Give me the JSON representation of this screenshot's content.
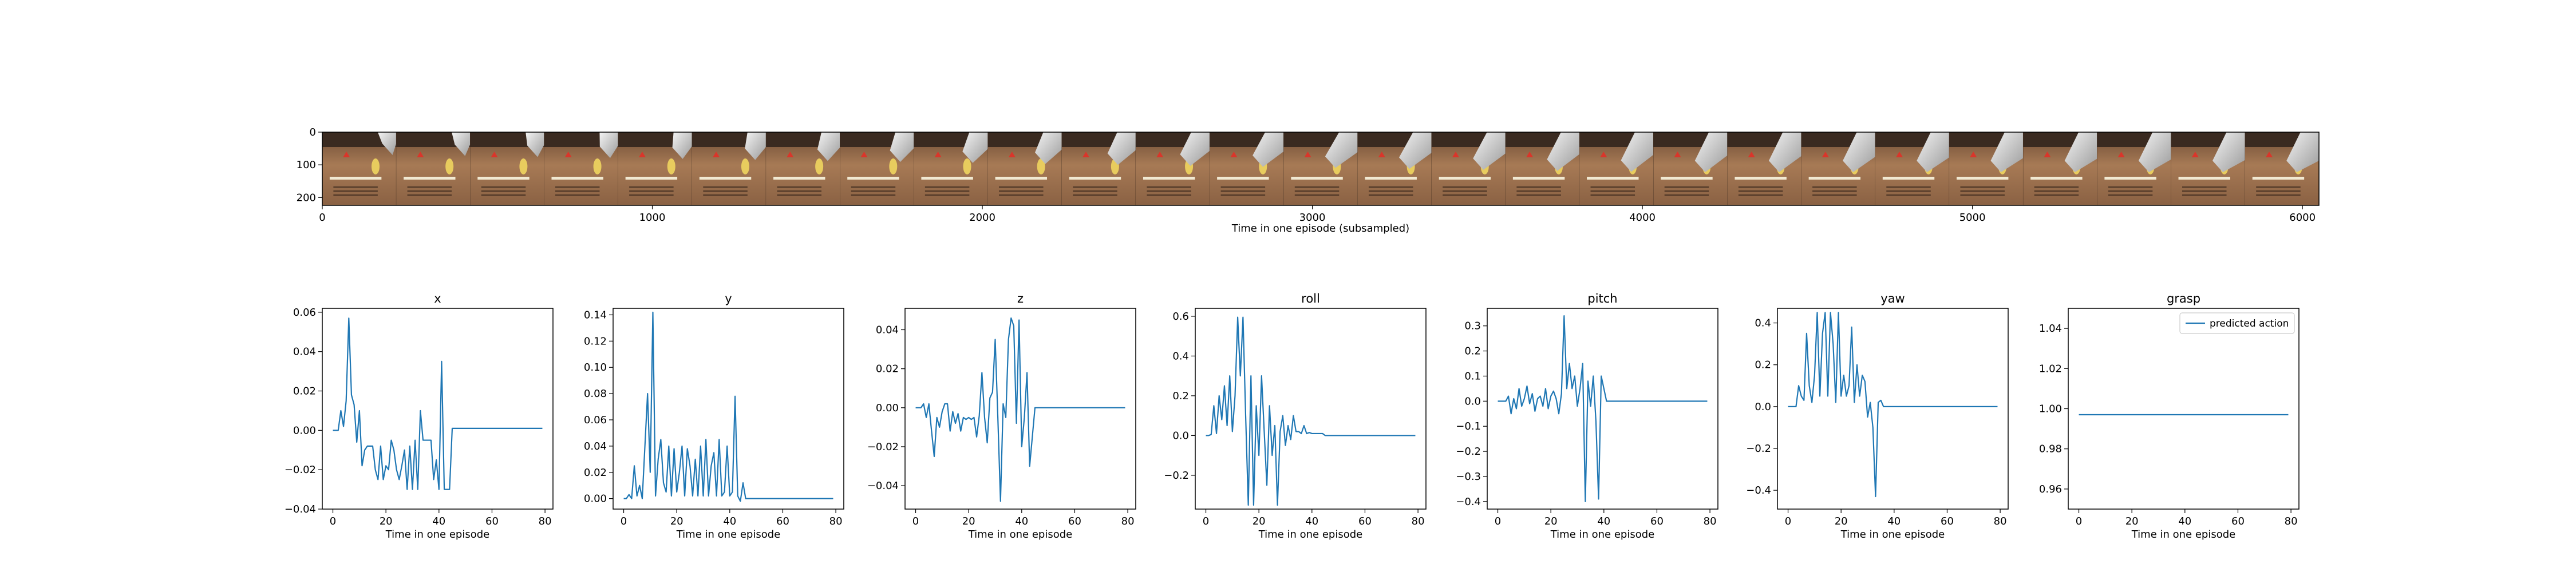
{
  "colors": {
    "line": "#1f77b4",
    "axis": "#000000",
    "background": "#ffffff"
  },
  "filmstrip": {
    "xlabel": "Time in one episode (subsampled)",
    "x_ticks": [
      "0",
      "1000",
      "2000",
      "3000",
      "4000",
      "5000",
      "6000"
    ],
    "y_ticks": [
      "0",
      "100",
      "200"
    ],
    "frame_count": 27,
    "frame_description": "robot gripper above a tan box with a red marker and yellow object"
  },
  "chart_data": [
    {
      "type": "line",
      "title": "x",
      "xlabel": "Time in one episode",
      "x_ticks": [
        "0",
        "20",
        "40",
        "60",
        "80"
      ],
      "y_ticks": [
        "−0.04",
        "−0.02",
        "0.00",
        "0.02",
        "0.04",
        "0.06"
      ],
      "y_tick_values": [
        -0.04,
        -0.02,
        0.0,
        0.02,
        0.04,
        0.06
      ],
      "xlim": [
        -4,
        83
      ],
      "ylim": [
        -0.04,
        0.062
      ],
      "values": [
        0,
        0,
        0,
        0.01,
        0.002,
        0.015,
        0.057,
        0.018,
        0.013,
        -0.006,
        0.01,
        -0.018,
        -0.01,
        -0.008,
        -0.008,
        -0.008,
        -0.02,
        -0.025,
        -0.008,
        -0.025,
        -0.018,
        -0.02,
        -0.005,
        -0.01,
        -0.02,
        -0.025,
        -0.018,
        -0.01,
        -0.03,
        -0.008,
        -0.03,
        -0.005,
        -0.03,
        0.01,
        -0.005,
        -0.005,
        -0.005,
        -0.005,
        -0.025,
        -0.015,
        -0.03,
        0.035,
        -0.03,
        -0.03,
        -0.03,
        0.001,
        0.001,
        0.001,
        0.001,
        0.001,
        0.001,
        0.001,
        0.001,
        0.001,
        0.001,
        0.001,
        0.001,
        0.001,
        0.001,
        0.001,
        0.001,
        0.001,
        0.001,
        0.001,
        0.001,
        0.001,
        0.001,
        0.001,
        0.001,
        0.001,
        0.001,
        0.001,
        0.001,
        0.001,
        0.001,
        0.001,
        0.001,
        0.001,
        0.001,
        0.001
      ]
    },
    {
      "type": "line",
      "title": "y",
      "xlabel": "Time in one episode",
      "x_ticks": [
        "0",
        "20",
        "40",
        "60",
        "80"
      ],
      "y_ticks": [
        "0.00",
        "0.02",
        "0.04",
        "0.06",
        "0.08",
        "0.10",
        "0.12",
        "0.14"
      ],
      "y_tick_values": [
        0,
        0.02,
        0.04,
        0.06,
        0.08,
        0.1,
        0.12,
        0.14
      ],
      "xlim": [
        -4,
        83
      ],
      "ylim": [
        -0.008,
        0.145
      ],
      "values": [
        0,
        0,
        0.003,
        0,
        0.025,
        0.002,
        0.01,
        0,
        0.04,
        0.08,
        0.02,
        0.142,
        0.002,
        0.03,
        0.045,
        0.012,
        0.005,
        0.04,
        0.002,
        0.038,
        0.005,
        0.02,
        0.04,
        0.002,
        0.038,
        0.025,
        0.002,
        0.03,
        0.002,
        0.04,
        0.002,
        0.045,
        0.002,
        0.025,
        0.035,
        0.002,
        0.045,
        0.002,
        0.005,
        0.04,
        0.002,
        0.005,
        0.078,
        0.002,
        -0.002,
        0.012,
        0,
        0,
        0,
        0,
        0,
        0,
        0,
        0,
        0,
        0,
        0,
        0,
        0,
        0,
        0,
        0,
        0,
        0,
        0,
        0,
        0,
        0,
        0,
        0,
        0,
        0,
        0,
        0,
        0,
        0,
        0,
        0,
        0,
        0
      ]
    },
    {
      "type": "line",
      "title": "z",
      "xlabel": "Time in one episode",
      "x_ticks": [
        "0",
        "20",
        "40",
        "60",
        "80"
      ],
      "y_ticks": [
        "−0.04",
        "−0.02",
        "0.00",
        "0.02",
        "0.04"
      ],
      "y_tick_values": [
        -0.04,
        -0.02,
        0.0,
        0.02,
        0.04
      ],
      "xlim": [
        -4,
        83
      ],
      "ylim": [
        -0.052,
        0.051
      ],
      "values": [
        0,
        0,
        0,
        0.002,
        -0.005,
        0.002,
        -0.012,
        -0.025,
        -0.005,
        -0.01,
        -0.002,
        0.002,
        0.002,
        -0.012,
        -0.002,
        -0.008,
        -0.003,
        -0.012,
        -0.005,
        -0.006,
        -0.005,
        -0.006,
        -0.005,
        -0.015,
        -0.004,
        0.018,
        -0.005,
        -0.018,
        0.005,
        0.008,
        0.035,
        -0.005,
        -0.048,
        0.002,
        -0.005,
        0.035,
        0.046,
        0.042,
        -0.008,
        0.045,
        -0.02,
        -0.005,
        0.018,
        -0.03,
        -0.015,
        0,
        0,
        0,
        0,
        0,
        0,
        0,
        0,
        0,
        0,
        0,
        0,
        0,
        0,
        0,
        0,
        0,
        0,
        0,
        0,
        0,
        0,
        0,
        0,
        0,
        0,
        0,
        0,
        0,
        0,
        0,
        0,
        0,
        0,
        0
      ]
    },
    {
      "type": "line",
      "title": "roll",
      "xlabel": "Time in one episode",
      "x_ticks": [
        "0",
        "20",
        "40",
        "60",
        "80"
      ],
      "y_ticks": [
        "−0.2",
        "0.0",
        "0.2",
        "0.4",
        "0.6"
      ],
      "y_tick_values": [
        -0.2,
        0.0,
        0.2,
        0.4,
        0.6
      ],
      "xlim": [
        -4,
        83
      ],
      "ylim": [
        -0.37,
        0.64
      ],
      "values": [
        0,
        0,
        0.005,
        0.15,
        0.01,
        0.2,
        0.08,
        0.25,
        0.05,
        0.3,
        0.02,
        0.2,
        0.595,
        0.3,
        0.595,
        0.1,
        -0.35,
        0.3,
        -0.35,
        0.15,
        -0.1,
        0.3,
        0.02,
        -0.25,
        0.15,
        -0.1,
        0.05,
        -0.35,
        0.02,
        0.1,
        -0.05,
        0.05,
        -0.02,
        0.1,
        0.02,
        0.02,
        0.01,
        0.05,
        0.01,
        0.015,
        0.01,
        0.01,
        0.01,
        0.01,
        0.01,
        0,
        0,
        0,
        0,
        0,
        0,
        0,
        0,
        0,
        0,
        0,
        0,
        0,
        0,
        0,
        0,
        0,
        0,
        0,
        0,
        0,
        0,
        0,
        0,
        0,
        0,
        0,
        0,
        0,
        0,
        0,
        0,
        0,
        0,
        0
      ]
    },
    {
      "type": "line",
      "title": "pitch",
      "xlabel": "Time in one episode",
      "x_ticks": [
        "0",
        "20",
        "40",
        "60",
        "80"
      ],
      "y_ticks": [
        "−0.4",
        "−0.3",
        "−0.2",
        "−0.1",
        "0.0",
        "0.1",
        "0.2",
        "0.3"
      ],
      "y_tick_values": [
        -0.4,
        -0.3,
        -0.2,
        -0.1,
        0.0,
        0.1,
        0.2,
        0.3
      ],
      "xlim": [
        -4,
        83
      ],
      "ylim": [
        -0.43,
        0.37
      ],
      "values": [
        0,
        0,
        0,
        0,
        0.02,
        -0.05,
        0.01,
        -0.03,
        0.05,
        -0.02,
        0.01,
        0.06,
        -0.01,
        0.03,
        -0.04,
        0.01,
        0.02,
        -0.02,
        0.05,
        -0.03,
        0.02,
        0.04,
        0.01,
        -0.05,
        0.03,
        0.34,
        0.05,
        0.15,
        0.05,
        0.1,
        -0.02,
        0.05,
        0.15,
        -0.4,
        0.08,
        -0.02,
        0.1,
        -0.08,
        -0.39,
        0.1,
        0.05,
        0,
        0,
        0,
        0,
        0,
        0,
        0,
        0,
        0,
        0,
        0,
        0,
        0,
        0,
        0,
        0,
        0,
        0,
        0,
        0,
        0,
        0,
        0,
        0,
        0,
        0,
        0,
        0,
        0,
        0,
        0,
        0,
        0,
        0,
        0,
        0,
        0,
        0,
        0
      ]
    },
    {
      "type": "line",
      "title": "yaw",
      "xlabel": "Time in one episode",
      "x_ticks": [
        "0",
        "20",
        "40",
        "60",
        "80"
      ],
      "y_ticks": [
        "−0.4",
        "−0.2",
        "0.0",
        "0.2",
        "0.4"
      ],
      "y_tick_values": [
        -0.4,
        -0.2,
        0.0,
        0.2,
        0.4
      ],
      "xlim": [
        -4,
        83
      ],
      "ylim": [
        -0.49,
        0.47
      ],
      "values": [
        0,
        0,
        0,
        0,
        0.1,
        0.05,
        0.03,
        0.35,
        0.1,
        0.02,
        0.15,
        0.45,
        0.05,
        0.35,
        0.45,
        0.05,
        0.45,
        0.3,
        0.02,
        0.45,
        0.05,
        0.15,
        0.05,
        0.1,
        0.38,
        0.02,
        0.2,
        0.05,
        0.15,
        0.12,
        -0.05,
        0.02,
        -0.1,
        -0.43,
        0.02,
        0.03,
        0,
        0,
        0,
        0,
        0,
        0,
        0,
        0,
        0,
        0,
        0,
        0,
        0,
        0,
        0,
        0,
        0,
        0,
        0,
        0,
        0,
        0,
        0,
        0,
        0,
        0,
        0,
        0,
        0,
        0,
        0,
        0,
        0,
        0,
        0,
        0,
        0,
        0,
        0,
        0,
        0,
        0,
        0,
        0
      ]
    },
    {
      "type": "line",
      "title": "grasp",
      "xlabel": "Time in one episode",
      "x_ticks": [
        "0",
        "20",
        "40",
        "60",
        "80"
      ],
      "y_ticks": [
        "0.96",
        "0.98",
        "1.00",
        "1.02",
        "1.04"
      ],
      "y_tick_values": [
        0.96,
        0.98,
        1.0,
        1.02,
        1.04
      ],
      "xlim": [
        -4,
        83
      ],
      "ylim": [
        0.95,
        1.05
      ],
      "legend": [
        "predicted action"
      ],
      "legend_position": "top-right",
      "values": [
        0.997,
        0.997,
        0.997,
        0.997,
        0.997,
        0.997,
        0.997,
        0.997,
        0.997,
        0.997,
        0.997,
        0.997,
        0.997,
        0.997,
        0.997,
        0.997,
        0.997,
        0.997,
        0.997,
        0.997,
        0.997,
        0.997,
        0.997,
        0.997,
        0.997,
        0.997,
        0.997,
        0.997,
        0.997,
        0.997,
        0.997,
        0.997,
        0.997,
        0.997,
        0.997,
        0.997,
        0.997,
        0.997,
        0.997,
        0.997,
        0.997,
        0.997,
        0.997,
        0.997,
        0.997,
        0.997,
        0.997,
        0.997,
        0.997,
        0.997,
        0.997,
        0.997,
        0.997,
        0.997,
        0.997,
        0.997,
        0.997,
        0.997,
        0.997,
        0.997,
        0.997,
        0.997,
        0.997,
        0.997,
        0.997,
        0.997,
        0.997,
        0.997,
        0.997,
        0.997,
        0.997,
        0.997,
        0.997,
        0.997,
        0.997,
        0.997,
        0.997,
        0.997,
        0.997,
        0.997
      ]
    }
  ]
}
